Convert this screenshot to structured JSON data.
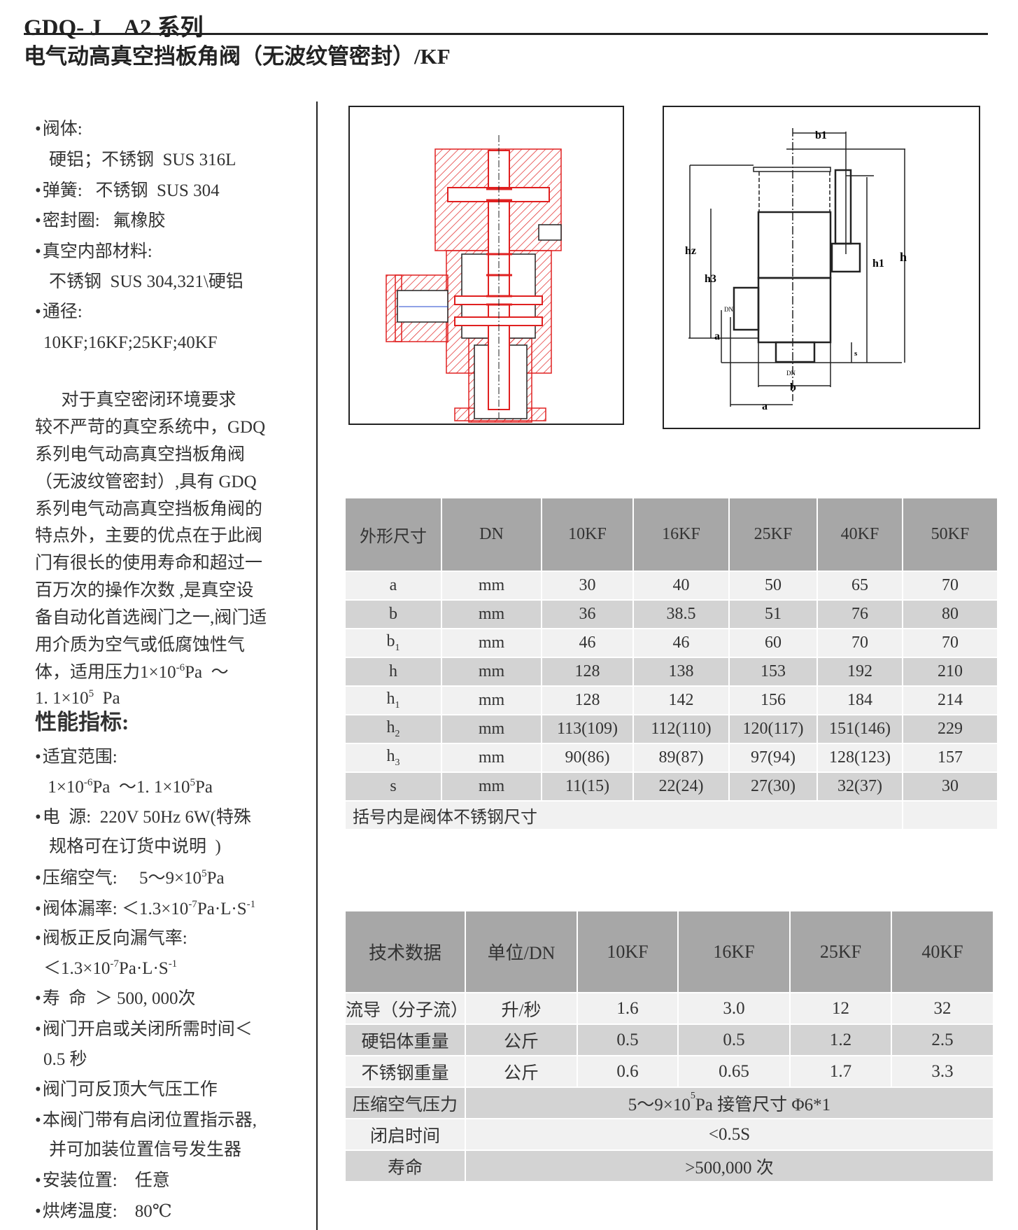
{
  "header": {
    "series_title": "GDQ- J    A2 系列",
    "product_title": "电气动高真空挡板角阀（无波纹管密封）/KF"
  },
  "left": {
    "lines": [
      {
        "kind": "bullet",
        "parts": [
          {
            "t": "阀体:"
          }
        ]
      },
      {
        "kind": "cont",
        "parts": [
          {
            "t": "硬铝；不锈钢  SUS 316L"
          }
        ]
      },
      {
        "kind": "bullet",
        "parts": [
          {
            "t": "弹簧:   不锈钢  SUS 304"
          }
        ]
      },
      {
        "kind": "bullet",
        "parts": [
          {
            "t": "密封圈:   氟橡胶"
          }
        ]
      },
      {
        "kind": "bullet",
        "parts": [
          {
            "t": "真空内部材料:"
          }
        ]
      },
      {
        "kind": "cont",
        "parts": [
          {
            "t": "不锈钢  SUS 304,321\\硬铝"
          }
        ]
      },
      {
        "kind": "bullet",
        "parts": [
          {
            "t": "通径:"
          }
        ]
      },
      {
        "kind": "cont2",
        "parts": [
          {
            "t": "10KF;16KF;25KF;40KF"
          }
        ]
      },
      {
        "kind": "para",
        "parts": [
          {
            "t": "      对于真空密闭环境要求"
          }
        ]
      },
      {
        "kind": "para",
        "parts": [
          {
            "t": "较不严苛的真空系统中，GDQ"
          }
        ]
      },
      {
        "kind": "para",
        "parts": [
          {
            "t": "系列电气动高真空挡板角阀"
          }
        ]
      },
      {
        "kind": "para",
        "parts": [
          {
            "t": "（无波纹管密封）,具有 GDQ"
          }
        ]
      },
      {
        "kind": "para",
        "parts": [
          {
            "t": "系列电气动高真空挡板角阀的"
          }
        ]
      },
      {
        "kind": "para",
        "parts": [
          {
            "t": "特点外，主要的优点在于此阀"
          }
        ]
      },
      {
        "kind": "para",
        "parts": [
          {
            "t": "门有很长的使用寿命和超过一"
          }
        ]
      },
      {
        "kind": "para",
        "parts": [
          {
            "t": "百万次的操作次数 ,是真空设"
          }
        ]
      },
      {
        "kind": "para",
        "parts": [
          {
            "t": "备自动化首选阀门之一,阀门适"
          }
        ]
      },
      {
        "kind": "para",
        "parts": [
          {
            "t": "用介质为空气或低腐蚀性气"
          }
        ]
      },
      {
        "kind": "para",
        "parts": [
          {
            "t": "体，适用压力1×10"
          },
          {
            "sup": "-6"
          },
          {
            "t": "Pa  ～"
          }
        ]
      },
      {
        "kind": "para",
        "parts": [
          {
            "t": "1. 1×10"
          },
          {
            "sup": "5"
          },
          {
            "t": "  Pa"
          }
        ]
      },
      {
        "kind": "heading",
        "parts": [
          {
            "t": "性能指标:"
          }
        ]
      },
      {
        "kind": "bullet",
        "parts": [
          {
            "t": "适宜范围:"
          }
        ]
      },
      {
        "kind": "cont2",
        "parts": [
          {
            "t": " 1×10"
          },
          {
            "sup": "-6"
          },
          {
            "t": "Pa  ～1. 1×10"
          },
          {
            "sup": "5"
          },
          {
            "t": "Pa"
          }
        ]
      },
      {
        "kind": "bullet",
        "parts": [
          {
            "t": "电  源:  220V 50Hz 6W(特殊"
          }
        ]
      },
      {
        "kind": "cont",
        "parts": [
          {
            "t": "规格可在订货中说明  )"
          }
        ]
      },
      {
        "kind": "bullet",
        "parts": [
          {
            "t": "压缩空气:     5～9×10"
          },
          {
            "sup": "5"
          },
          {
            "t": "Pa"
          }
        ]
      },
      {
        "kind": "bullet",
        "parts": [
          {
            "t": "阀体漏率: ＜1.3×10"
          },
          {
            "sup": "-7"
          },
          {
            "t": "Pa·L·S"
          },
          {
            "sup": "-1"
          }
        ]
      },
      {
        "kind": "bullet",
        "parts": [
          {
            "t": "阀板正反向漏气率:"
          }
        ]
      },
      {
        "kind": "cont2",
        "parts": [
          {
            "t": "＜1.3×10"
          },
          {
            "sup": "-7"
          },
          {
            "t": "Pa·L·S"
          },
          {
            "sup": "-1"
          }
        ]
      },
      {
        "kind": "bullet",
        "parts": [
          {
            "t": "寿  命  ＞ 500, 000次"
          }
        ]
      },
      {
        "kind": "bullet",
        "parts": [
          {
            "t": "阀门开启或关闭所需时间＜"
          }
        ]
      },
      {
        "kind": "cont2",
        "parts": [
          {
            "t": "0.5 秒"
          }
        ]
      },
      {
        "kind": "bullet",
        "parts": [
          {
            "t": "阀门可反顶大气压工作"
          }
        ]
      },
      {
        "kind": "bullet",
        "parts": [
          {
            "t": "本阀门带有启闭位置指示器,"
          }
        ]
      },
      {
        "kind": "cont",
        "parts": [
          {
            "t": "并可加装位置信号发生器"
          }
        ]
      },
      {
        "kind": "bullet",
        "parts": [
          {
            "t": "安装位置:    任意"
          }
        ]
      },
      {
        "kind": "bullet",
        "parts": [
          {
            "t": "烘烤温度:    80℃"
          }
        ]
      }
    ]
  },
  "drawing_colors": {
    "section": "#e02020",
    "outline": "#222222"
  },
  "dimension_labels": {
    "b1": "b1",
    "h2": "hz",
    "h3": "h3",
    "h1": "h1",
    "h": "h",
    "a": "a",
    "b": "b",
    "s": "s",
    "dn": "DN"
  },
  "dimensions_table": {
    "headers": [
      "外形尺寸",
      "DN",
      "10KF",
      "16KF",
      "25KF",
      "40KF",
      "50KF"
    ],
    "rows": [
      {
        "label": "a",
        "sub": "",
        "unit": "mm",
        "values": [
          "30",
          "40",
          "50",
          "65",
          "70"
        ]
      },
      {
        "label": "b",
        "sub": "",
        "unit": "mm",
        "values": [
          "36",
          "38.5",
          "51",
          "76",
          "80"
        ]
      },
      {
        "label": "b",
        "sub": "1",
        "unit": "mm",
        "values": [
          "46",
          "46",
          "60",
          "70",
          "70"
        ]
      },
      {
        "label": "h",
        "sub": "",
        "unit": "mm",
        "values": [
          "128",
          "138",
          "153",
          "192",
          "210"
        ]
      },
      {
        "label": "h",
        "sub": "1",
        "unit": "mm",
        "values": [
          "128",
          "142",
          "156",
          "184",
          "214"
        ]
      },
      {
        "label": "h",
        "sub": "2",
        "unit": "mm",
        "values": [
          "113(109)",
          "112(110)",
          "120(117)",
          "151(146)",
          "229"
        ]
      },
      {
        "label": "h",
        "sub": "3",
        "unit": "mm",
        "values": [
          "90(86)",
          "89(87)",
          "97(94)",
          "128(123)",
          "157"
        ]
      },
      {
        "label": "s",
        "sub": "",
        "unit": "mm",
        "values": [
          "11(15)",
          "22(24)",
          "27(30)",
          "32(37)",
          "30"
        ]
      }
    ],
    "note": "括号内是阀体不锈钢尺寸"
  },
  "tech_table": {
    "headers": [
      "技术数据",
      "单位/DN",
      "10KF",
      "16KF",
      "25KF",
      "40KF"
    ],
    "rows": [
      {
        "label": "流导（分子流）",
        "unit": "升/秒",
        "values": [
          "1.6",
          "3.0",
          "12",
          "32"
        ]
      },
      {
        "label": "硬铝体重量",
        "unit": "公斤",
        "values": [
          "0.5",
          "0.5",
          "1.2",
          "2.5"
        ]
      },
      {
        "label": "不锈钢重量",
        "unit": "公斤",
        "values": [
          "0.6",
          "0.65",
          "1.7",
          "3.3"
        ]
      }
    ],
    "air_pressure": {
      "label": "压缩空气压力",
      "value_a": "5～9×10",
      "value_sup": "5",
      "value_b": "Pa    接管尺寸  Φ6*1"
    },
    "switch_time": {
      "label": "闭启时间",
      "value": "<0.5S"
    },
    "life": {
      "label": "寿命",
      "value": ">500,000 次"
    }
  }
}
